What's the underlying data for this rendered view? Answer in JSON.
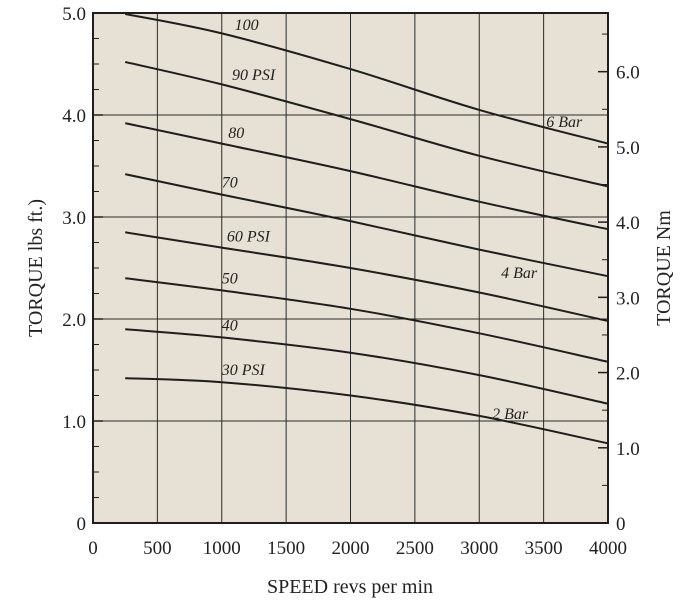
{
  "colors": {
    "plot_background": "#e6e1d4",
    "line": "#1e1e1e",
    "grid": "#2a2a2a"
  },
  "chart_data": {
    "type": "line",
    "xlabel": "SPEED revs per min",
    "ylabel": "TORQUE lbs ft.)",
    "y2label": "TORQUE Nm",
    "xlim": [
      0,
      4000
    ],
    "ylim": [
      0,
      5.0
    ],
    "y2lim": [
      0,
      6.78
    ],
    "grid": true,
    "x_ticks": [
      "0",
      "500",
      "1000",
      "1500",
      "2000",
      "2500",
      "3000",
      "3500",
      "4000"
    ],
    "y_ticks": [
      "0",
      "1.0",
      "2.0",
      "3.0",
      "4.0",
      "5.0"
    ],
    "y2_ticks": [
      "0",
      "1.0",
      "2.0",
      "3.0",
      "4.0",
      "5.0",
      "6.0"
    ],
    "series": [
      {
        "name": "100",
        "points": [
          [
            250,
            4.99
          ],
          [
            1000,
            4.8
          ],
          [
            2000,
            4.45
          ],
          [
            3000,
            4.05
          ],
          [
            4000,
            3.72
          ]
        ]
      },
      {
        "name": "90 PSI",
        "points": [
          [
            250,
            4.52
          ],
          [
            1000,
            4.3
          ],
          [
            2000,
            3.96
          ],
          [
            3000,
            3.6
          ],
          [
            4000,
            3.3
          ]
        ]
      },
      {
        "name": "80",
        "points": [
          [
            250,
            3.92
          ],
          [
            1000,
            3.72
          ],
          [
            2000,
            3.45
          ],
          [
            3000,
            3.15
          ],
          [
            4000,
            2.88
          ]
        ]
      },
      {
        "name": "70",
        "points": [
          [
            250,
            3.42
          ],
          [
            1000,
            3.22
          ],
          [
            2000,
            2.96
          ],
          [
            3000,
            2.68
          ],
          [
            4000,
            2.42
          ]
        ]
      },
      {
        "name": "60 PSI",
        "points": [
          [
            250,
            2.85
          ],
          [
            1000,
            2.7
          ],
          [
            2000,
            2.5
          ],
          [
            3000,
            2.26
          ],
          [
            4000,
            1.98
          ]
        ]
      },
      {
        "name": "50",
        "points": [
          [
            250,
            2.4
          ],
          [
            1000,
            2.28
          ],
          [
            2000,
            2.1
          ],
          [
            3000,
            1.86
          ],
          [
            4000,
            1.58
          ]
        ]
      },
      {
        "name": "40",
        "points": [
          [
            250,
            1.9
          ],
          [
            1000,
            1.82
          ],
          [
            2000,
            1.67
          ],
          [
            3000,
            1.45
          ],
          [
            4000,
            1.17
          ]
        ]
      },
      {
        "name": "30 PSI",
        "points": [
          [
            250,
            1.42
          ],
          [
            1000,
            1.38
          ],
          [
            2000,
            1.25
          ],
          [
            3000,
            1.05
          ],
          [
            4000,
            0.78
          ]
        ]
      }
    ],
    "annotations": [
      "6 Bar",
      "4 Bar",
      "2 Bar"
    ]
  }
}
